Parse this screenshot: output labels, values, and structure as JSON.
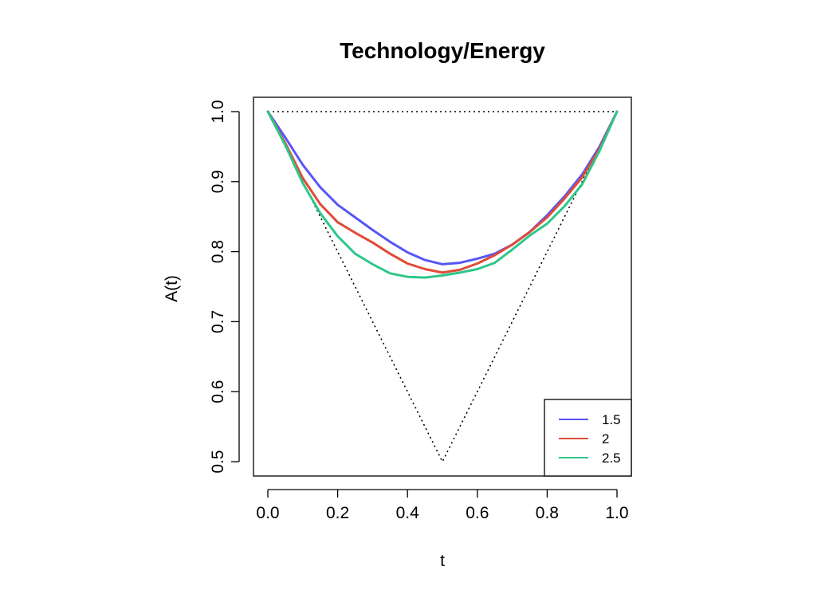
{
  "chart_data": {
    "type": "line",
    "title": "Technology/Energy",
    "xlabel": "t",
    "ylabel": "A(t)",
    "xlim": [
      0,
      1
    ],
    "ylim": [
      0.5,
      1.0
    ],
    "x_ticks": [
      "0.0",
      "0.2",
      "0.4",
      "0.6",
      "0.8",
      "1.0"
    ],
    "y_ticks": [
      "0.5",
      "0.6",
      "0.7",
      "0.8",
      "0.9",
      "1.0"
    ],
    "grid": false,
    "legend_position": "bottom-right",
    "reference_lines": [
      {
        "style": "dotted",
        "color": "#000000",
        "x": [
          0,
          1
        ],
        "y": [
          1,
          1
        ]
      },
      {
        "style": "dotted",
        "color": "#000000",
        "x": [
          0,
          0.5,
          1
        ],
        "y": [
          1,
          0.5,
          1
        ]
      }
    ],
    "x": [
      0,
      0.05,
      0.1,
      0.15,
      0.2,
      0.25,
      0.3,
      0.35,
      0.4,
      0.45,
      0.5,
      0.55,
      0.6,
      0.65,
      0.7,
      0.75,
      0.8,
      0.85,
      0.9,
      0.95,
      1.0
    ],
    "series": [
      {
        "name": "1.5",
        "color": "#5757f5",
        "values": [
          1.0,
          0.963,
          0.924,
          0.892,
          0.867,
          0.849,
          0.831,
          0.814,
          0.799,
          0.788,
          0.782,
          0.784,
          0.79,
          0.797,
          0.81,
          0.828,
          0.852,
          0.879,
          0.91,
          0.95,
          1.0
        ]
      },
      {
        "name": "2",
        "color": "#e04b38",
        "values": [
          1.0,
          0.955,
          0.905,
          0.868,
          0.842,
          0.827,
          0.813,
          0.797,
          0.783,
          0.775,
          0.77,
          0.774,
          0.783,
          0.795,
          0.81,
          0.828,
          0.849,
          0.876,
          0.906,
          0.947,
          1.0
        ]
      },
      {
        "name": "2.5",
        "color": "#2ec78a",
        "values": [
          1.0,
          0.952,
          0.898,
          0.855,
          0.822,
          0.797,
          0.782,
          0.769,
          0.764,
          0.763,
          0.766,
          0.77,
          0.775,
          0.784,
          0.803,
          0.823,
          0.84,
          0.865,
          0.896,
          0.944,
          1.0
        ]
      }
    ]
  }
}
